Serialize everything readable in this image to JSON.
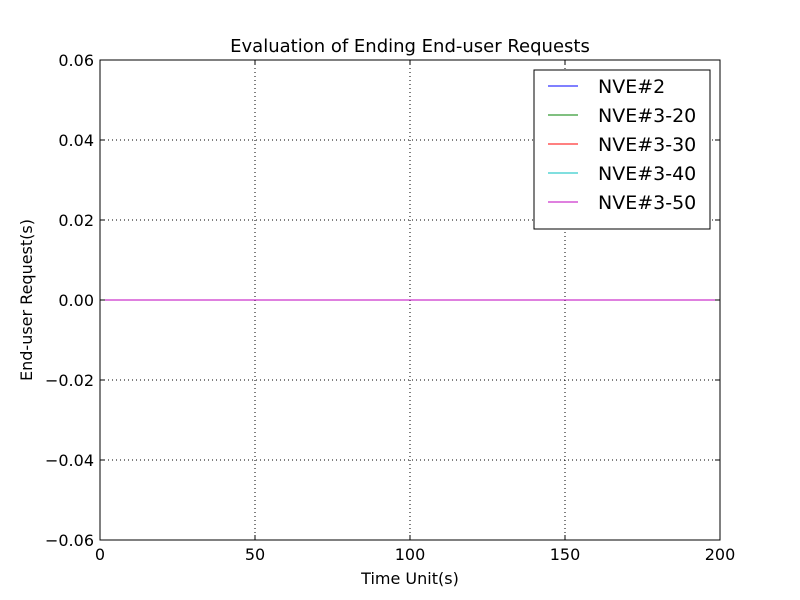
{
  "chart_data": {
    "type": "line",
    "title": "Evaluation of Ending End-user Requests",
    "xlabel": "Time Unit(s)",
    "ylabel": "End-user Request(s)",
    "xlim": [
      0,
      200
    ],
    "ylim": [
      -0.06,
      0.06
    ],
    "x_ticks": [
      0,
      50,
      100,
      150,
      200
    ],
    "x_tick_labels": [
      "0",
      "50",
      "100",
      "150",
      "200"
    ],
    "y_ticks": [
      -0.06,
      -0.04,
      -0.02,
      0.0,
      0.02,
      0.04,
      0.06
    ],
    "y_tick_labels": [
      "−0.06",
      "−0.04",
      "−0.02",
      "0.00",
      "0.02",
      "0.04",
      "0.06"
    ],
    "grid": true,
    "legend_position": "top-right",
    "series": [
      {
        "name": "NVE#2",
        "color": "#0000ff",
        "x": [
          0,
          200
        ],
        "y": [
          0,
          0
        ]
      },
      {
        "name": "NVE#3-20",
        "color": "#008000",
        "x": [
          0,
          200
        ],
        "y": [
          0,
          0
        ]
      },
      {
        "name": "NVE#3-30",
        "color": "#ff0000",
        "x": [
          0,
          200
        ],
        "y": [
          0,
          0
        ]
      },
      {
        "name": "NVE#3-40",
        "color": "#00bfbf",
        "x": [
          0,
          200
        ],
        "y": [
          0,
          0
        ]
      },
      {
        "name": "NVE#3-50",
        "color": "#bf00bf",
        "x": [
          0,
          200
        ],
        "y": [
          0,
          0
        ]
      }
    ]
  }
}
